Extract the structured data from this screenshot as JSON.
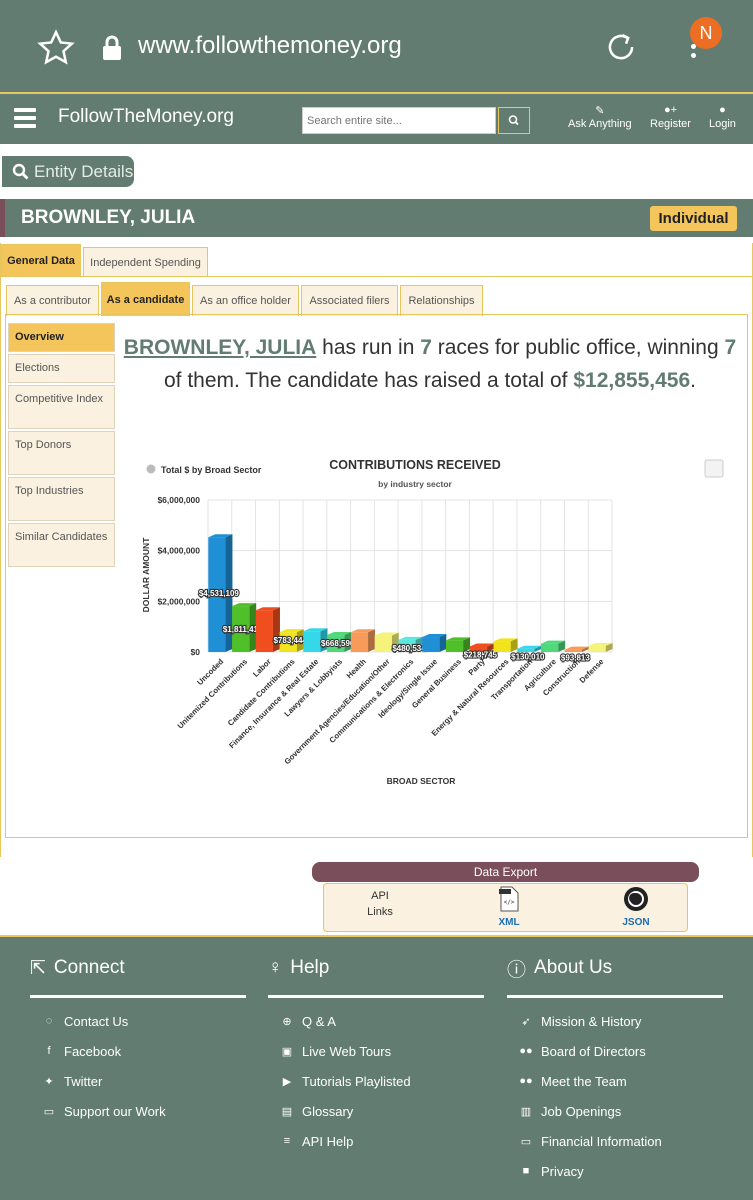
{
  "browser": {
    "url": "www.followthemoney.org",
    "profile_initial": "N"
  },
  "header": {
    "brand": "FollowTheMoney.org",
    "search_placeholder": "Search entire site...",
    "nav": [
      {
        "label": "Ask Anything",
        "icon": "edit-icon"
      },
      {
        "label": "Register",
        "icon": "user-plus-icon"
      },
      {
        "label": "Login",
        "icon": "user-icon"
      }
    ]
  },
  "entity_label": "Entity Details",
  "entity": {
    "name": "BROWNLEY, JULIA",
    "type": "Individual"
  },
  "tabs": [
    "General Data",
    "Independent Spending"
  ],
  "subtabs": [
    "As a contributor",
    "As a candidate",
    "As an office holder",
    "Associated filers",
    "Relationships"
  ],
  "side_nav": [
    "Overview",
    "Elections",
    "Competitive Index",
    "Top Donors",
    "Top Industries",
    "Similar Candidates"
  ],
  "summary": {
    "name": "BROWNLEY, JULIA",
    "t1": " has run in ",
    "races": "7",
    "t2": " races for public office, winning ",
    "wins": "7",
    "t3": " of them. The candidate has raised a total of ",
    "total": "$12,855,456",
    "t4": "."
  },
  "chart_data": {
    "type": "bar",
    "title": "CONTRIBUTIONS RECEIVED",
    "subtitle": "by industry sector",
    "legend": "Total $ by Broad Sector",
    "xlabel": "BROAD SECTOR",
    "ylabel": "DOLLAR AMOUNT",
    "ylim": [
      0,
      6000000
    ],
    "yticks": [
      "$0",
      "$2,000,000",
      "$4,000,000",
      "$6,000,000"
    ],
    "categories": [
      "Uncoded",
      "Unitemized Contributions",
      "Labor",
      "Candidate Contributions",
      "Finance, Insurance & Real Estate",
      "Lawyers & Lobbyists",
      "Health",
      "Government Agencies/Education/Other",
      "Communications & Electronics",
      "Ideology/Single Issue",
      "General Business",
      "Party",
      "Energy & Natural Resources",
      "Transportation",
      "Agriculture",
      "Construction",
      "Defense"
    ],
    "values": [
      4531109,
      1811419,
      1650000,
      783444,
      820000,
      668596,
      780000,
      650000,
      480534,
      590000,
      460000,
      218745,
      420000,
      130010,
      330000,
      93813,
      240000
    ],
    "labels": [
      "$4,531,109",
      "$1,811,419",
      "",
      "$783,444",
      "",
      "$668,596",
      "",
      "",
      "$480,534",
      "",
      "",
      "$218,745",
      "",
      "$130,010",
      "",
      "$93,813",
      ""
    ],
    "colors": [
      "#1f8fd6",
      "#4fbf2a",
      "#f04e1e",
      "#f2e41b",
      "#35d8e8",
      "#4fd97a",
      "#f79a5a",
      "#f5f37a",
      "#5ce6df",
      "#1f8fd6",
      "#4fbf2a",
      "#f04e1e",
      "#f2e41b",
      "#35d8e8",
      "#4fd97a",
      "#f79a5a",
      "#f5f37a"
    ],
    "grid": true
  },
  "export": {
    "title": "Data Export",
    "api_label": "API Links",
    "xml": "XML",
    "json": "JSON"
  },
  "footer": {
    "connect": {
      "title": "Connect",
      "links": [
        "Contact Us",
        "Facebook",
        "Twitter",
        "Support our Work"
      ]
    },
    "help": {
      "title": "Help",
      "links": [
        "Q & A",
        "Live Web Tours",
        "Tutorials Playlisted",
        "Glossary",
        "API Help"
      ]
    },
    "about": {
      "title": "About Us",
      "links": [
        "Mission & History",
        "Board of Directors",
        "Meet the Team",
        "Job Openings",
        "Financial Information",
        "Privacy"
      ]
    }
  }
}
